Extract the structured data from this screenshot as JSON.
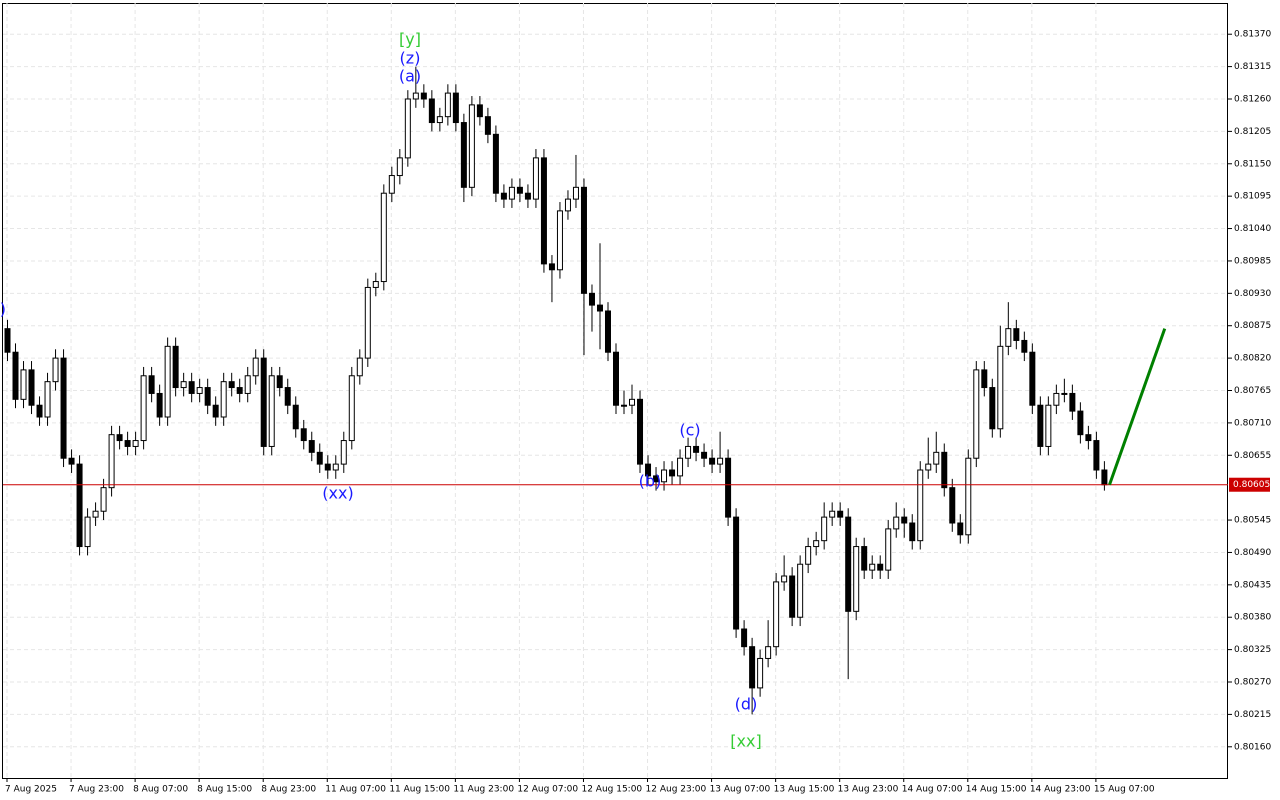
{
  "chart_data": {
    "type": "candlestick",
    "open": [
      0.8087,
      0.8083,
      0.8075,
      0.808,
      0.8074,
      0.8072,
      0.8078,
      0.8082,
      0.8065,
      0.8064,
      0.805,
      0.8055,
      0.8056,
      0.806,
      0.8069,
      0.8068,
      0.8067,
      0.8068,
      0.8079,
      0.8076,
      0.8072,
      0.8084,
      0.8077,
      0.8078,
      0.8076,
      0.8077,
      0.8074,
      0.8072,
      0.8078,
      0.8077,
      0.8076,
      0.8079,
      0.8082,
      0.8067,
      0.8079,
      0.8077,
      0.8074,
      0.807,
      0.8068,
      0.8066,
      0.8064,
      0.8063,
      0.8064,
      0.8068,
      0.8079,
      0.8082,
      0.8094,
      0.8095,
      0.811,
      0.8113,
      0.8116,
      0.8126,
      0.8127,
      0.8126,
      0.8122,
      0.8123,
      0.8127,
      0.8122,
      0.8111,
      0.8125,
      0.8123,
      0.812,
      0.811,
      0.8109,
      0.8111,
      0.811,
      0.8109,
      0.8116,
      0.8098,
      0.8097,
      0.8107,
      0.8109,
      0.8111,
      0.8093,
      0.8091,
      0.809,
      0.8083,
      0.8074,
      0.8074,
      0.8075,
      0.8064,
      0.8062,
      0.8061,
      0.8063,
      0.8062,
      0.8065,
      0.8067,
      0.8066,
      0.8065,
      0.8064,
      0.8065,
      0.8055,
      0.8036,
      0.8033,
      0.8026,
      0.8031,
      0.8033,
      0.8044,
      0.8045,
      0.8038,
      0.8047,
      0.805,
      0.8051,
      0.8055,
      0.8056,
      0.8055,
      0.8039,
      0.805,
      0.8046,
      0.8047,
      0.8046,
      0.8053,
      0.8055,
      0.8054,
      0.8051,
      0.8063,
      0.8064,
      0.8066,
      0.806,
      0.8054,
      0.8052,
      0.8065,
      0.808,
      0.8077,
      0.807,
      0.8084,
      0.8087,
      0.8085,
      0.8083,
      0.8074,
      0.8067,
      0.8074,
      0.8076,
      0.8076,
      0.8073,
      0.8069,
      0.8068,
      0.8063
    ],
    "high": [
      0.80885,
      0.80845,
      0.80815,
      0.80815,
      0.80755,
      0.80795,
      0.80835,
      0.80835,
      0.80665,
      0.80655,
      0.80565,
      0.80575,
      0.80615,
      0.80705,
      0.80705,
      0.80695,
      0.80695,
      0.80805,
      0.80805,
      0.80775,
      0.80855,
      0.80855,
      0.80795,
      0.80795,
      0.80785,
      0.80785,
      0.80755,
      0.80795,
      0.80795,
      0.80785,
      0.80805,
      0.80835,
      0.80835,
      0.80805,
      0.80805,
      0.80785,
      0.80755,
      0.80715,
      0.80695,
      0.80675,
      0.80655,
      0.80655,
      0.80695,
      0.80805,
      0.80835,
      0.80955,
      0.80965,
      0.81115,
      0.81145,
      0.81175,
      0.81275,
      0.81315,
      0.81285,
      0.81275,
      0.81245,
      0.81285,
      0.81285,
      0.81235,
      0.81265,
      0.81265,
      0.81245,
      0.81215,
      0.81115,
      0.81125,
      0.81125,
      0.81115,
      0.81175,
      0.81175,
      0.80995,
      0.81085,
      0.81105,
      0.81165,
      0.81125,
      0.80945,
      0.81015,
      0.80915,
      0.80845,
      0.80765,
      0.80775,
      0.80765,
      0.80655,
      0.80635,
      0.80645,
      0.80645,
      0.80665,
      0.80685,
      0.80685,
      0.80675,
      0.80665,
      0.80695,
      0.80665,
      0.80565,
      0.80375,
      0.80345,
      0.80325,
      0.80375,
      0.80455,
      0.80485,
      0.80465,
      0.80485,
      0.80515,
      0.80525,
      0.80575,
      0.80575,
      0.80575,
      0.80565,
      0.80515,
      0.80515,
      0.80485,
      0.80485,
      0.80545,
      0.80575,
      0.80565,
      0.80555,
      0.80645,
      0.80685,
      0.80695,
      0.80675,
      0.80615,
      0.80555,
      0.80665,
      0.80815,
      0.80815,
      0.80785,
      0.80875,
      0.80915,
      0.80885,
      0.80865,
      0.80845,
      0.80755,
      0.80755,
      0.80775,
      0.80785,
      0.80775,
      0.80745,
      0.80705,
      0.80695,
      0.80645
    ],
    "low": [
      0.80815,
      0.80735,
      0.80735,
      0.80725,
      0.80705,
      0.80705,
      0.80765,
      0.80635,
      0.80625,
      0.80485,
      0.80485,
      0.80535,
      0.80545,
      0.80585,
      0.80665,
      0.80655,
      0.80655,
      0.80665,
      0.80745,
      0.80705,
      0.80705,
      0.80755,
      0.80755,
      0.80745,
      0.80745,
      0.80725,
      0.80705,
      0.80705,
      0.80755,
      0.80745,
      0.80745,
      0.80775,
      0.80655,
      0.80655,
      0.80755,
      0.80725,
      0.80685,
      0.80665,
      0.80645,
      0.80625,
      0.80615,
      0.80615,
      0.80625,
      0.80665,
      0.80775,
      0.80805,
      0.80925,
      0.80935,
      0.81085,
      0.81115,
      0.81145,
      0.81245,
      0.81245,
      0.81205,
      0.81205,
      0.81215,
      0.81205,
      0.81085,
      0.81095,
      0.81215,
      0.81185,
      0.81085,
      0.81075,
      0.81075,
      0.81085,
      0.81075,
      0.81075,
      0.80965,
      0.80915,
      0.80955,
      0.81055,
      0.81075,
      0.80825,
      0.80865,
      0.80835,
      0.80815,
      0.80725,
      0.80725,
      0.80725,
      0.80625,
      0.80605,
      0.80595,
      0.80595,
      0.80605,
      0.80605,
      0.80635,
      0.80645,
      0.80635,
      0.80625,
      0.80625,
      0.80535,
      0.80345,
      0.80315,
      0.80215,
      0.80245,
      0.80295,
      0.80315,
      0.80425,
      0.80365,
      0.80365,
      0.80455,
      0.80485,
      0.80495,
      0.80535,
      0.80535,
      0.80275,
      0.80375,
      0.80445,
      0.80445,
      0.80445,
      0.80445,
      0.80515,
      0.80515,
      0.80495,
      0.80495,
      0.80615,
      0.80625,
      0.80585,
      0.80525,
      0.80505,
      0.80505,
      0.80635,
      0.80755,
      0.80685,
      0.80685,
      0.80825,
      0.80835,
      0.80815,
      0.80725,
      0.80655,
      0.80655,
      0.80725,
      0.80745,
      0.80715,
      0.80675,
      0.80665,
      0.80615,
      0.80595
    ],
    "close": [
      0.8083,
      0.8075,
      0.808,
      0.8074,
      0.8072,
      0.8078,
      0.8082,
      0.8065,
      0.8064,
      0.805,
      0.8055,
      0.8056,
      0.806,
      0.8069,
      0.8068,
      0.8067,
      0.8068,
      0.8079,
      0.8076,
      0.8072,
      0.8084,
      0.8077,
      0.8078,
      0.8076,
      0.8077,
      0.8074,
      0.8072,
      0.8078,
      0.8077,
      0.8076,
      0.8079,
      0.8082,
      0.8067,
      0.8079,
      0.8077,
      0.8074,
      0.807,
      0.8068,
      0.8066,
      0.8064,
      0.8063,
      0.8064,
      0.8068,
      0.8079,
      0.8082,
      0.8094,
      0.8095,
      0.811,
      0.8113,
      0.8116,
      0.8126,
      0.8127,
      0.8126,
      0.8122,
      0.8123,
      0.8127,
      0.8122,
      0.8111,
      0.8125,
      0.8123,
      0.812,
      0.811,
      0.8109,
      0.8111,
      0.811,
      0.8109,
      0.8116,
      0.8098,
      0.8097,
      0.8107,
      0.8109,
      0.8111,
      0.8093,
      0.8091,
      0.809,
      0.8083,
      0.8074,
      0.8074,
      0.8075,
      0.8064,
      0.8062,
      0.8061,
      0.8063,
      0.8062,
      0.8065,
      0.8067,
      0.8066,
      0.8065,
      0.8064,
      0.8065,
      0.8055,
      0.8036,
      0.8033,
      0.8026,
      0.8031,
      0.8033,
      0.8044,
      0.8045,
      0.8038,
      0.8047,
      0.805,
      0.8051,
      0.8055,
      0.8056,
      0.8055,
      0.8039,
      0.805,
      0.8046,
      0.8047,
      0.8046,
      0.8053,
      0.8055,
      0.8054,
      0.8051,
      0.8063,
      0.8064,
      0.8066,
      0.806,
      0.8054,
      0.8052,
      0.8065,
      0.808,
      0.8077,
      0.807,
      0.8084,
      0.8087,
      0.8085,
      0.8083,
      0.8074,
      0.8067,
      0.8074,
      0.8076,
      0.8076,
      0.8073,
      0.8069,
      0.8068,
      0.8063,
      0.80605
    ],
    "ylim": [
      0.80107,
      0.81423
    ],
    "yticks": [
      {
        "value": 0.8137,
        "label": "0.81370"
      },
      {
        "value": 0.81315,
        "label": "0.81315"
      },
      {
        "value": 0.8126,
        "label": "0.81260"
      },
      {
        "value": 0.81205,
        "label": "0.81205"
      },
      {
        "value": 0.8115,
        "label": "0.81150"
      },
      {
        "value": 0.81095,
        "label": "0.81095"
      },
      {
        "value": 0.8104,
        "label": "0.81040"
      },
      {
        "value": 0.80985,
        "label": "0.80985"
      },
      {
        "value": 0.8093,
        "label": "0.80930"
      },
      {
        "value": 0.80875,
        "label": "0.80875"
      },
      {
        "value": 0.8082,
        "label": "0.80820"
      },
      {
        "value": 0.80765,
        "label": "0.80765"
      },
      {
        "value": 0.8071,
        "label": "0.80710"
      },
      {
        "value": 0.80655,
        "label": "0.80655"
      },
      {
        "value": 0.80545,
        "label": "0.80545"
      },
      {
        "value": 0.8049,
        "label": "0.80490"
      },
      {
        "value": 0.80435,
        "label": "0.80435"
      },
      {
        "value": 0.8038,
        "label": "0.80380"
      },
      {
        "value": 0.80325,
        "label": "0.80325"
      },
      {
        "value": 0.8027,
        "label": "0.80270"
      },
      {
        "value": 0.80215,
        "label": "0.80215"
      },
      {
        "value": 0.8016,
        "label": "0.80160"
      }
    ],
    "xlim": [
      -0.5,
      152.5
    ],
    "xticks": [
      {
        "value": 0,
        "label": "7 Aug 2025"
      },
      {
        "value": 8,
        "label": "7 Aug 23:00"
      },
      {
        "value": 16,
        "label": "8 Aug 07:00"
      },
      {
        "value": 24,
        "label": "8 Aug 15:00"
      },
      {
        "value": 32,
        "label": "8 Aug 23:00"
      },
      {
        "value": 40,
        "label": "11 Aug 07:00"
      },
      {
        "value": 48,
        "label": "11 Aug 15:00"
      },
      {
        "value": 56,
        "label": "11 Aug 23:00"
      },
      {
        "value": 64,
        "label": "12 Aug 07:00"
      },
      {
        "value": 72,
        "label": "12 Aug 15:00"
      },
      {
        "value": 80,
        "label": "12 Aug 23:00"
      },
      {
        "value": 88,
        "label": "13 Aug 07:00"
      },
      {
        "value": 96,
        "label": "13 Aug 15:00"
      },
      {
        "value": 104,
        "label": "13 Aug 23:00"
      },
      {
        "value": 112,
        "label": "14 Aug 07:00"
      },
      {
        "value": 120,
        "label": "14 Aug 15:00"
      },
      {
        "value": 128,
        "label": "14 Aug 23:00"
      },
      {
        "value": 136,
        "label": "15 Aug 07:00"
      }
    ],
    "grid": true,
    "current_price": 0.80605,
    "current_price_color": "#cc0000",
    "forecast": {
      "x": [
        137.7,
        144.6
      ],
      "y": [
        0.80605,
        0.8087
      ],
      "color": "#008000"
    },
    "annotations": [
      {
        "text": "(y)",
        "color": "#1a1aff"
      },
      {
        "text": "[y]",
        "color": "#33cc33"
      },
      {
        "text": "(z)",
        "color": "#1a1aff"
      },
      {
        "text": "(a)",
        "color": "#1a1aff"
      },
      {
        "text": "(xx)",
        "color": "#1a1aff"
      },
      {
        "text": "(b)",
        "color": "#1a1aff"
      },
      {
        "text": "(c)",
        "color": "#1a1aff"
      },
      {
        "text": "(d)",
        "color": "#1a1aff"
      },
      {
        "text": "[xx]",
        "color": "#33cc33"
      }
    ]
  }
}
